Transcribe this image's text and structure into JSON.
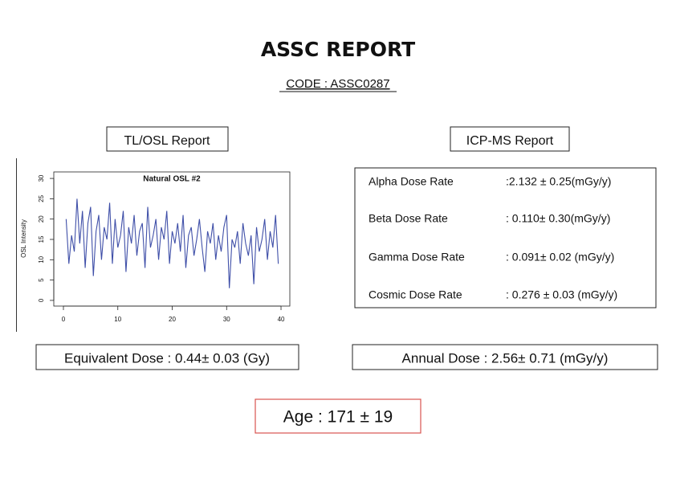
{
  "header": {
    "title": "ASSC REPORT",
    "code": "CODE : ASSC0287"
  },
  "tl_osl": {
    "heading": "TL/OSL Report",
    "equivalent_dose": "Equivalent Dose : 0.44± 0.03 (Gy)"
  },
  "chart_data": {
    "type": "line",
    "title": "Natural OSL #2",
    "y_label": "OSL Intensity",
    "x": [
      0.5,
      1,
      1.5,
      2,
      2.5,
      3,
      3.5,
      4,
      4.5,
      5,
      5.5,
      6,
      6.5,
      7,
      7.5,
      8,
      8.5,
      9,
      9.5,
      10,
      10.5,
      11,
      11.5,
      12,
      12.5,
      13,
      13.5,
      14,
      14.5,
      15,
      15.5,
      16,
      16.5,
      17,
      17.5,
      18,
      18.5,
      19,
      19.5,
      20,
      20.5,
      21,
      21.5,
      22,
      22.5,
      23,
      23.5,
      24,
      24.5,
      25,
      25.5,
      26,
      26.5,
      27,
      27.5,
      28,
      28.5,
      29,
      29.5,
      30,
      30.5,
      31,
      31.5,
      32,
      32.5,
      33,
      33.5,
      34,
      34.5,
      35,
      35.5,
      36,
      36.5,
      37,
      37.5,
      38,
      38.5,
      39,
      39.5
    ],
    "series": [
      {
        "name": "Natural OSL #2",
        "color": "#3f4fa8",
        "values": [
          20,
          9,
          16,
          12,
          25,
          14,
          22,
          8,
          19,
          23,
          6,
          17,
          21,
          10,
          18,
          15,
          24,
          9,
          20,
          13,
          16,
          22,
          7,
          18,
          14,
          21,
          11,
          17,
          19,
          8,
          23,
          13,
          16,
          20,
          10,
          18,
          15,
          22,
          9,
          17,
          14,
          19,
          12,
          21,
          8,
          16,
          18,
          11,
          15,
          20,
          13,
          7,
          17,
          14,
          19,
          10,
          16,
          12,
          18,
          21,
          3,
          15,
          13,
          17,
          9,
          19,
          14,
          11,
          16,
          4,
          18,
          12,
          15,
          20,
          10,
          17,
          13,
          21,
          9
        ]
      }
    ],
    "xlim": [
      -1.77,
      41.62
    ],
    "ylim": [
      -1.4,
      31.6
    ],
    "xticks": [
      0,
      10,
      20,
      30,
      40
    ],
    "yticks": [
      0,
      5,
      10,
      15,
      20,
      25,
      30
    ]
  },
  "icp_ms": {
    "heading": "ICP-MS Report",
    "rows": [
      {
        "label": "Alpha Dose Rate",
        "value": ":2.132 ± 0.25(mGy/y)"
      },
      {
        "label": "Beta Dose Rate",
        "value": ": 0.110± 0.30(mGy/y)"
      },
      {
        "label": "Gamma Dose Rate",
        "value": ": 0.091± 0.02 (mGy/y)"
      },
      {
        "label": "Cosmic Dose Rate",
        "value": ": 0.276 ± 0.03 (mGy/y)"
      }
    ],
    "annual_dose": "Annual Dose : 2.56± 0.71 (mGy/y)"
  },
  "age": "Age : 171 ± 19"
}
